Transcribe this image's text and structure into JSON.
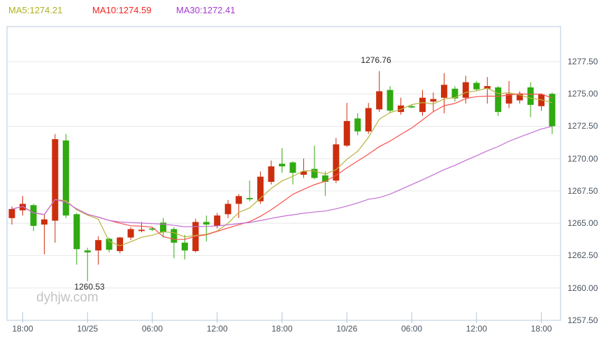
{
  "legend": {
    "ma5": {
      "text": "MA5:1274.21",
      "color": "#b0b121"
    },
    "ma10": {
      "text": "MA10:1274.59",
      "color": "#f32420"
    },
    "ma30": {
      "text": "MA30:1272.41",
      "color": "#a43bd0"
    }
  },
  "annotations": {
    "high": "1276.76",
    "low": "1260.53"
  },
  "watermark": "dyhjw.com",
  "y_axis": {
    "labels": [
      "1277.50",
      "1275.00",
      "1272.50",
      "1270.00",
      "1267.50",
      "1265.00",
      "1262.50",
      "1260.00",
      "1257.50"
    ]
  },
  "x_axis": {
    "labels": [
      "18:00",
      "10/25",
      "06:00",
      "12:00",
      "18:00",
      "10/26",
      "06:00",
      "12:00",
      "18:00"
    ]
  },
  "chart_data": {
    "type": "candlestick",
    "title": "",
    "xlabel": "",
    "ylabel": "",
    "ylim": [
      1257.5,
      1280.2
    ],
    "grid": "horizontal-only",
    "legend_position": "top-left",
    "y_ticks": [
      1277.5,
      1275.0,
      1272.5,
      1270.0,
      1267.5,
      1265.0,
      1262.5,
      1260.0,
      1257.5
    ],
    "x_tick_indices": [
      1,
      7,
      13,
      19,
      25,
      31,
      37,
      43,
      49
    ],
    "x_tick_labels": [
      "18:00",
      "10/25",
      "06:00",
      "12:00",
      "18:00",
      "10/26",
      "06:00",
      "12:00",
      "18:00"
    ],
    "high_label": {
      "candle_index": 34,
      "value": 1276.76
    },
    "low_label": {
      "candle_index": 7,
      "value": 1260.53
    },
    "up_color": "#cc2e0d",
    "down_color": "#2faa10",
    "moving_averages": [
      {
        "name": "MA5",
        "period": 5,
        "value": 1274.21,
        "color": "#b8b33d"
      },
      {
        "name": "MA10",
        "period": 10,
        "value": 1274.59,
        "color": "#f9524e"
      },
      {
        "name": "MA30",
        "period": 30,
        "value": 1272.41,
        "color": "#c36fd3"
      }
    ],
    "candles": [
      {
        "o": 1265.4,
        "h": 1266.3,
        "l": 1264.9,
        "c": 1266.1,
        "dir": "up"
      },
      {
        "o": 1266.0,
        "h": 1267.1,
        "l": 1265.6,
        "c": 1266.5,
        "dir": "up"
      },
      {
        "o": 1266.4,
        "h": 1266.5,
        "l": 1264.4,
        "c": 1264.8,
        "dir": "down"
      },
      {
        "o": 1264.9,
        "h": 1265.7,
        "l": 1262.6,
        "c": 1265.3,
        "dir": "up"
      },
      {
        "o": 1265.2,
        "h": 1271.9,
        "l": 1263.5,
        "c": 1271.5,
        "dir": "up"
      },
      {
        "o": 1271.4,
        "h": 1271.9,
        "l": 1265.4,
        "c": 1265.6,
        "dir": "down"
      },
      {
        "o": 1265.7,
        "h": 1265.8,
        "l": 1261.8,
        "c": 1263.0,
        "dir": "down"
      },
      {
        "o": 1262.9,
        "h": 1263.1,
        "l": 1260.53,
        "c": 1262.75,
        "dir": "down"
      },
      {
        "o": 1262.9,
        "h": 1264.0,
        "l": 1261.8,
        "c": 1263.7,
        "dir": "up"
      },
      {
        "o": 1263.8,
        "h": 1263.9,
        "l": 1262.75,
        "c": 1262.95,
        "dir": "down"
      },
      {
        "o": 1262.85,
        "h": 1263.95,
        "l": 1262.7,
        "c": 1263.9,
        "dir": "up"
      },
      {
        "o": 1263.9,
        "h": 1264.7,
        "l": 1263.7,
        "c": 1264.55,
        "dir": "up"
      },
      {
        "o": 1264.4,
        "h": 1265.1,
        "l": 1264.3,
        "c": 1264.5,
        "dir": "up"
      },
      {
        "o": 1264.6,
        "h": 1264.7,
        "l": 1264.4,
        "c": 1264.5,
        "dir": "down"
      },
      {
        "o": 1265.05,
        "h": 1265.4,
        "l": 1263.9,
        "c": 1264.3,
        "dir": "down"
      },
      {
        "o": 1264.55,
        "h": 1264.7,
        "l": 1262.3,
        "c": 1263.5,
        "dir": "down"
      },
      {
        "o": 1263.5,
        "h": 1264.1,
        "l": 1262.2,
        "c": 1262.9,
        "dir": "down"
      },
      {
        "o": 1262.85,
        "h": 1265.35,
        "l": 1262.75,
        "c": 1265.1,
        "dir": "up"
      },
      {
        "o": 1265.1,
        "h": 1265.6,
        "l": 1263.6,
        "c": 1264.9,
        "dir": "down"
      },
      {
        "o": 1264.8,
        "h": 1265.8,
        "l": 1264.6,
        "c": 1265.6,
        "dir": "up"
      },
      {
        "o": 1265.7,
        "h": 1266.8,
        "l": 1265.4,
        "c": 1266.5,
        "dir": "up"
      },
      {
        "o": 1266.5,
        "h": 1267.25,
        "l": 1265.4,
        "c": 1267.1,
        "dir": "up"
      },
      {
        "o": 1266.95,
        "h": 1268.3,
        "l": 1266.7,
        "c": 1266.85,
        "dir": "down"
      },
      {
        "o": 1266.7,
        "h": 1269.0,
        "l": 1266.5,
        "c": 1268.6,
        "dir": "up"
      },
      {
        "o": 1268.2,
        "h": 1269.85,
        "l": 1268.0,
        "c": 1269.4,
        "dir": "up"
      },
      {
        "o": 1269.6,
        "h": 1270.8,
        "l": 1268.9,
        "c": 1269.4,
        "dir": "down"
      },
      {
        "o": 1269.7,
        "h": 1269.8,
        "l": 1268.0,
        "c": 1268.9,
        "dir": "down"
      },
      {
        "o": 1268.75,
        "h": 1270.0,
        "l": 1268.5,
        "c": 1269.0,
        "dir": "up"
      },
      {
        "o": 1269.2,
        "h": 1271.0,
        "l": 1268.4,
        "c": 1268.5,
        "dir": "down"
      },
      {
        "o": 1268.7,
        "h": 1269.0,
        "l": 1267.1,
        "c": 1268.2,
        "dir": "down"
      },
      {
        "o": 1268.3,
        "h": 1271.6,
        "l": 1268.1,
        "c": 1271.1,
        "dir": "up"
      },
      {
        "o": 1271.0,
        "h": 1274.3,
        "l": 1270.9,
        "c": 1272.9,
        "dir": "up"
      },
      {
        "o": 1273.1,
        "h": 1273.5,
        "l": 1271.8,
        "c": 1272.1,
        "dir": "down"
      },
      {
        "o": 1272.1,
        "h": 1274.3,
        "l": 1271.9,
        "c": 1273.9,
        "dir": "up"
      },
      {
        "o": 1273.8,
        "h": 1276.76,
        "l": 1273.6,
        "c": 1275.2,
        "dir": "up"
      },
      {
        "o": 1275.3,
        "h": 1275.6,
        "l": 1273.5,
        "c": 1273.7,
        "dir": "down"
      },
      {
        "o": 1273.6,
        "h": 1274.7,
        "l": 1273.4,
        "c": 1274.1,
        "dir": "up"
      },
      {
        "o": 1274.05,
        "h": 1274.2,
        "l": 1273.9,
        "c": 1273.95,
        "dir": "down"
      },
      {
        "o": 1273.6,
        "h": 1275.3,
        "l": 1273.3,
        "c": 1274.7,
        "dir": "up"
      },
      {
        "o": 1274.4,
        "h": 1275.1,
        "l": 1273.6,
        "c": 1274.6,
        "dir": "up"
      },
      {
        "o": 1274.7,
        "h": 1276.6,
        "l": 1273.5,
        "c": 1275.7,
        "dir": "up"
      },
      {
        "o": 1275.4,
        "h": 1275.6,
        "l": 1274.4,
        "c": 1274.65,
        "dir": "down"
      },
      {
        "o": 1274.7,
        "h": 1276.4,
        "l": 1274.25,
        "c": 1275.9,
        "dir": "up"
      },
      {
        "o": 1275.85,
        "h": 1276.0,
        "l": 1275.2,
        "c": 1275.35,
        "dir": "down"
      },
      {
        "o": 1275.4,
        "h": 1276.3,
        "l": 1274.25,
        "c": 1275.6,
        "dir": "up"
      },
      {
        "o": 1275.5,
        "h": 1275.6,
        "l": 1273.3,
        "c": 1273.6,
        "dir": "down"
      },
      {
        "o": 1274.25,
        "h": 1276.0,
        "l": 1273.9,
        "c": 1275.0,
        "dir": "up"
      },
      {
        "o": 1274.5,
        "h": 1275.2,
        "l": 1274.25,
        "c": 1275.0,
        "dir": "up"
      },
      {
        "o": 1275.5,
        "h": 1275.9,
        "l": 1273.2,
        "c": 1274.15,
        "dir": "down"
      },
      {
        "o": 1274.05,
        "h": 1275.0,
        "l": 1273.7,
        "c": 1274.95,
        "dir": "up"
      },
      {
        "o": 1275.0,
        "h": 1275.1,
        "l": 1271.9,
        "c": 1272.5,
        "dir": "down"
      }
    ]
  }
}
